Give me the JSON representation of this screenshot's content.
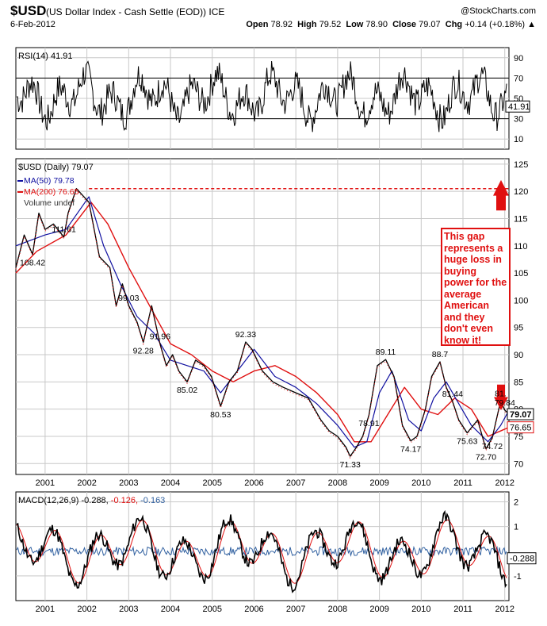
{
  "header": {
    "symbol": "$USD",
    "description": "(US Dollar Index - Cash Settle (EOD)) ICE",
    "copyright": "@StockCharts.com",
    "date": "6-Feb-2012",
    "open_label": "Open",
    "open": "78.92",
    "high_label": "High",
    "high": "79.52",
    "low_label": "Low",
    "low": "78.90",
    "close_label": "Close",
    "close": "79.07",
    "chg_label": "Chg",
    "chg": "+0.14 (+0.18%)"
  },
  "annotation": "This gap represents a huge loss in buying power for the average American and they don't even know it!",
  "colors": {
    "price": "#000000",
    "ma50": "#1010a0",
    "ma200": "#e01010",
    "annotation": "#e01010",
    "rsi": "#000000",
    "macd": "#000000",
    "signal": "#e01010",
    "histogram": "#3060a0",
    "grid": "#c8c8c8"
  },
  "chart_data": [
    {
      "type": "line",
      "panel": "rsi",
      "title": "RSI(14) 41.91",
      "ylim": [
        0,
        100
      ],
      "y_ticks": [
        10,
        30,
        50,
        70,
        90
      ],
      "ref_lines": [
        30,
        70
      ],
      "last_value": "41.91",
      "x_range": [
        2000.3,
        2012.1
      ],
      "x_ticks": [
        "2001",
        "2002",
        "2003",
        "2004",
        "2005",
        "2006",
        "2007",
        "2008",
        "2009",
        "2010",
        "2011",
        "2012"
      ],
      "grid": true
    },
    {
      "type": "line",
      "panel": "price",
      "title": "$USD (Daily) 79.07",
      "ylim": [
        68,
        126
      ],
      "y_ticks": [
        70,
        75,
        80,
        85,
        90,
        95,
        100,
        105,
        110,
        115,
        120,
        125
      ],
      "x_range": [
        2000.3,
        2012.1
      ],
      "x_ticks": [
        "2001",
        "2002",
        "2003",
        "2004",
        "2005",
        "2006",
        "2007",
        "2008",
        "2009",
        "2010",
        "2011",
        "2012"
      ],
      "legend": [
        "MA(50) 79.78",
        "MA(200) 76.65",
        "Volume undef"
      ],
      "series": [
        {
          "name": "$USD (Daily) 79.07",
          "x": [
            2000.3,
            2000.5,
            2000.7,
            2000.85,
            2001.0,
            2001.2,
            2001.45,
            2001.55,
            2001.75,
            2002.05,
            2002.3,
            2002.55,
            2002.7,
            2002.85,
            2003.0,
            2003.2,
            2003.35,
            2003.55,
            2003.75,
            2003.9,
            2004.05,
            2004.2,
            2004.4,
            2004.6,
            2004.8,
            2004.98,
            2005.2,
            2005.4,
            2005.6,
            2005.8,
            2005.95,
            2006.2,
            2006.45,
            2006.7,
            2007.0,
            2007.3,
            2007.6,
            2007.8,
            2008.0,
            2008.2,
            2008.3,
            2008.45,
            2008.6,
            2008.75,
            2008.95,
            2009.15,
            2009.35,
            2009.55,
            2009.75,
            2009.9,
            2010.1,
            2010.25,
            2010.45,
            2010.6,
            2010.75,
            2010.9,
            2011.1,
            2011.35,
            2011.55,
            2011.7,
            2011.9,
            2012.0,
            2012.1
          ],
          "values": [
            106,
            112,
            108.42,
            116,
            113,
            114,
            111.61,
            116,
            120.5,
            118,
            108,
            106,
            99,
            103,
            99.03,
            96,
            92.28,
            99,
            91.96,
            88,
            90,
            87,
            85.02,
            89,
            88,
            86,
            80.53,
            85,
            87,
            92.33,
            91,
            87,
            85,
            84,
            83,
            82,
            78,
            76,
            75,
            73,
            71.33,
            73,
            75,
            78.91,
            88,
            89.11,
            86,
            77,
            74.17,
            75,
            80,
            86,
            88.7,
            84,
            81.44,
            78,
            75.63,
            78,
            72.7,
            74.72,
            81.5,
            79.84,
            79.07
          ]
        },
        {
          "name": "MA(50) 79.78",
          "x": [
            2000.3,
            2001.0,
            2001.5,
            2002.05,
            2002.4,
            2002.8,
            2003.2,
            2003.6,
            2004.0,
            2004.4,
            2004.8,
            2005.2,
            2005.6,
            2006.0,
            2006.5,
            2007.0,
            2007.5,
            2008.0,
            2008.4,
            2008.7,
            2009.0,
            2009.3,
            2009.7,
            2010.0,
            2010.3,
            2010.6,
            2010.9,
            2011.2,
            2011.6,
            2011.9,
            2012.1
          ],
          "values": [
            110,
            112,
            113,
            119,
            110,
            103,
            97,
            94,
            89,
            88,
            87,
            83,
            87,
            91,
            86,
            84,
            81,
            77,
            73,
            74,
            83,
            87,
            78,
            76,
            82,
            85,
            81,
            77,
            74,
            77,
            79.78
          ]
        },
        {
          "name": "MA(200) 76.65",
          "x": [
            2000.3,
            2000.8,
            2001.5,
            2002.1,
            2002.5,
            2003.0,
            2003.5,
            2004.0,
            2004.5,
            2005.0,
            2005.5,
            2006.0,
            2006.5,
            2007.0,
            2007.5,
            2008.0,
            2008.4,
            2008.8,
            2009.2,
            2009.6,
            2010.0,
            2010.4,
            2010.8,
            2011.2,
            2011.6,
            2012.1
          ],
          "values": [
            105,
            109,
            112,
            118,
            114,
            106,
            99,
            92,
            90,
            87,
            85,
            87,
            88,
            86,
            83,
            79,
            74,
            74,
            79,
            84,
            80,
            79,
            82,
            80,
            75,
            76.65
          ]
        }
      ],
      "data_labels": [
        {
          "text": "108.42",
          "x": 2000.7,
          "y": 108.42
        },
        {
          "text": "111.61",
          "x": 2001.45,
          "y": 111.61
        },
        {
          "text": "99.03",
          "x": 2003.0,
          "y": 99.03
        },
        {
          "text": "92.28",
          "x": 2003.35,
          "y": 92.28
        },
        {
          "text": "91.96",
          "x": 2003.75,
          "y": 91.96
        },
        {
          "text": "85.02",
          "x": 2004.4,
          "y": 85.02
        },
        {
          "text": "80.53",
          "x": 2005.2,
          "y": 80.53
        },
        {
          "text": "92.33",
          "x": 2005.8,
          "y": 92.33
        },
        {
          "text": "71.33",
          "x": 2008.3,
          "y": 71.33
        },
        {
          "text": "78.91",
          "x": 2008.75,
          "y": 78.91
        },
        {
          "text": "89.11",
          "x": 2009.15,
          "y": 89.11
        },
        {
          "text": "74.17",
          "x": 2009.75,
          "y": 74.17
        },
        {
          "text": "88.7",
          "x": 2010.45,
          "y": 88.7
        },
        {
          "text": "81.44",
          "x": 2010.75,
          "y": 81.44
        },
        {
          "text": "75.63",
          "x": 2011.1,
          "y": 75.63
        },
        {
          "text": "72.70",
          "x": 2011.55,
          "y": 72.7
        },
        {
          "text": "74.72",
          "x": 2011.7,
          "y": 74.72
        },
        {
          "text": "79.84",
          "x": 2012.0,
          "y": 79.84
        },
        {
          "text": "81.",
          "x": 2011.9,
          "y": 81.5
        }
      ],
      "gap_line": {
        "from_x": 2002.05,
        "to_x": 2012.1,
        "y": 120.5
      },
      "last_values": {
        "close": "79.07",
        "ma200": "76.65"
      },
      "grid": true
    },
    {
      "type": "line",
      "panel": "macd",
      "title": "MACD(12,26,9)",
      "legend_values": [
        "-0.288",
        "-0.126",
        "-0.163"
      ],
      "ylim": [
        -2.0,
        2.4
      ],
      "y_ticks": [
        -1,
        1,
        2
      ],
      "last_value": "-0.288",
      "x_range": [
        2000.3,
        2012.1
      ],
      "x_ticks": [
        "2001",
        "2002",
        "2003",
        "2004",
        "2005",
        "2006",
        "2007",
        "2008",
        "2009",
        "2010",
        "2011",
        "2012"
      ],
      "grid": true
    }
  ]
}
